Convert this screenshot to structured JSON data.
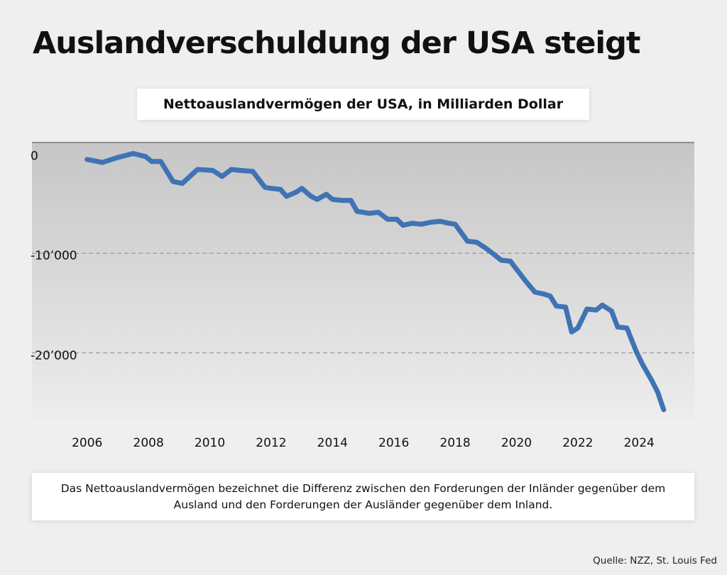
{
  "title": "Auslandverschuldung der USA steigt",
  "chart_data": {
    "type": "line",
    "title": "Nettoauslandvermögen der USA, in Milliarden Dollar",
    "xlabel": "",
    "ylabel": "",
    "xlim": [
      2004.2,
      2025.8
    ],
    "ylim": [
      -26700,
      1100
    ],
    "x_ticks": [
      2006,
      2008,
      2010,
      2012,
      2014,
      2016,
      2018,
      2020,
      2022,
      2024
    ],
    "y_ticks": [
      {
        "value": 0,
        "label": "0"
      },
      {
        "value": -10000,
        "label": "-10’000"
      },
      {
        "value": -20000,
        "label": "-20’000"
      }
    ],
    "grid": "horizontal dashed at -10000 and -20000",
    "color": "#3f73b4",
    "series": [
      {
        "x": [
          2006.0,
          2006.5,
          2007.0,
          2007.5,
          2007.9,
          2008.1,
          2008.4,
          2008.8,
          2009.1,
          2009.6,
          2010.1,
          2010.4,
          2010.7,
          2011.0,
          2011.4,
          2011.8,
          2012.0,
          2012.3,
          2012.5,
          2012.8,
          2013.0,
          2013.3,
          2013.5,
          2013.8,
          2014.0,
          2014.3,
          2014.6,
          2014.8,
          2015.2,
          2015.5,
          2015.8,
          2016.1,
          2016.3,
          2016.6,
          2016.9,
          2017.2,
          2017.5,
          2017.8,
          2018.0,
          2018.4,
          2018.7,
          2019.0,
          2019.3,
          2019.5,
          2019.8,
          2020.0,
          2020.3,
          2020.6,
          2020.9,
          2021.1,
          2021.3,
          2021.6,
          2021.8,
          2022.0,
          2022.3,
          2022.6,
          2022.8,
          2023.1,
          2023.3,
          2023.6,
          2023.9,
          2024.1,
          2024.4,
          2024.6,
          2024.8
        ],
        "y": [
          -600,
          -900,
          -400,
          0,
          -300,
          -800,
          -800,
          -2800,
          -3000,
          -1600,
          -1700,
          -2300,
          -1600,
          -1700,
          -1800,
          -3400,
          -3500,
          -3600,
          -4300,
          -3900,
          -3500,
          -4300,
          -4600,
          -4100,
          -4600,
          -4700,
          -4700,
          -5800,
          -6000,
          -5900,
          -6600,
          -6600,
          -7200,
          -7000,
          -7100,
          -6900,
          -6800,
          -7000,
          -7100,
          -8800,
          -8900,
          -9500,
          -10200,
          -10700,
          -10800,
          -11600,
          -12800,
          -13900,
          -14100,
          -14300,
          -15300,
          -15400,
          -17900,
          -17500,
          -15600,
          -15700,
          -15200,
          -15800,
          -17400,
          -17500,
          -19800,
          -21100,
          -22700,
          -23900,
          -25700
        ]
      }
    ]
  },
  "note": "Das Nettoauslandvermögen bezeichnet die Differenz zwischen den Forderungen der Inländer gegenüber dem Ausland und den Forderungen der Ausländer gegenüber dem Inland.",
  "source": "Quelle: NZZ, St. Louis Fed"
}
